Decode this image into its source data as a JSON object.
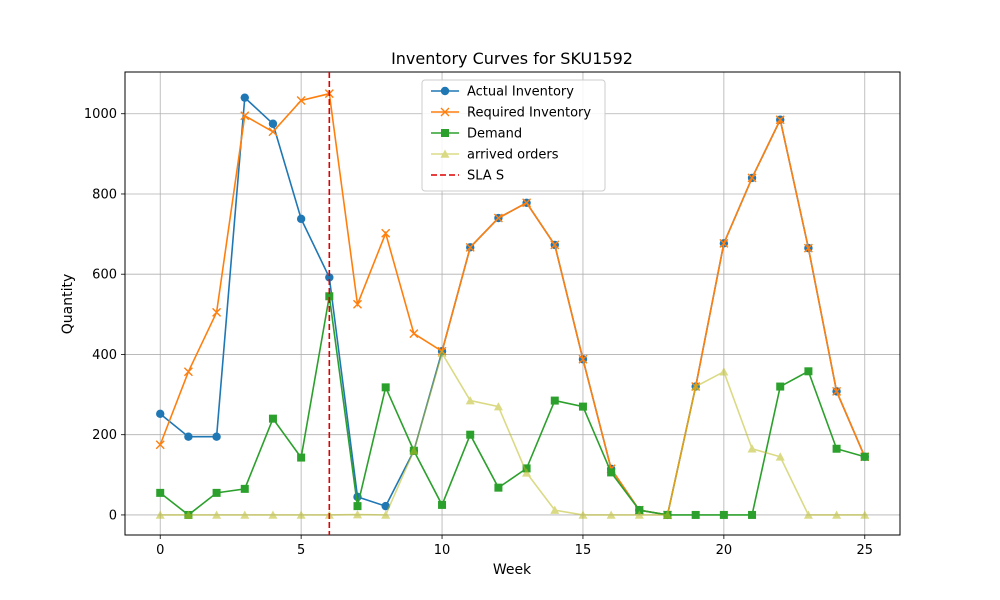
{
  "chart_data": {
    "type": "line",
    "title": "Inventory Curves for SKU1592",
    "xlabel": "Week",
    "ylabel": "Quantity",
    "xlim": [
      -1.25,
      26.25
    ],
    "ylim": [
      -50,
      1104
    ],
    "xticks": [
      0,
      5,
      10,
      15,
      20,
      25
    ],
    "yticks": [
      0,
      200,
      400,
      600,
      800,
      1000
    ],
    "grid": true,
    "legend_position": "top-center",
    "x": [
      0,
      1,
      2,
      3,
      4,
      5,
      6,
      7,
      8,
      9,
      10,
      11,
      12,
      13,
      14,
      15,
      16,
      17,
      18,
      19,
      20,
      21,
      22,
      23,
      24,
      25
    ],
    "series": [
      {
        "name": "Actual Inventory",
        "color": "#1f77b4",
        "marker": "circle",
        "style": "solid",
        "alpha": 1,
        "values": [
          252,
          195,
          195,
          1040,
          975,
          738,
          592,
          45,
          22,
          160,
          408,
          667,
          740,
          778,
          673,
          388,
          115,
          12,
          0,
          320,
          677,
          840,
          985,
          665,
          308,
          145
        ]
      },
      {
        "name": "Required Inventory",
        "color": "#ff7f0e",
        "marker": "x",
        "style": "solid",
        "alpha": 1,
        "values": [
          175,
          357,
          505,
          995,
          955,
          1033,
          1050,
          525,
          702,
          452,
          408,
          667,
          740,
          778,
          673,
          388,
          115,
          12,
          0,
          320,
          677,
          840,
          985,
          665,
          308,
          145
        ]
      },
      {
        "name": "Demand",
        "color": "#2ca02c",
        "marker": "square",
        "style": "solid",
        "alpha": 1,
        "values": [
          55,
          0,
          55,
          65,
          240,
          143,
          545,
          22,
          318,
          160,
          25,
          200,
          68,
          116,
          285,
          270,
          106,
          12,
          0,
          0,
          0,
          0,
          320,
          358,
          165,
          145
        ]
      },
      {
        "name": "arrived orders",
        "color": "#bcbd22",
        "marker": "triangle",
        "style": "solid",
        "alpha": 0.55,
        "values": [
          0,
          0,
          0,
          0,
          0,
          0,
          0,
          1,
          0,
          160,
          403,
          285,
          270,
          105,
          12,
          0,
          0,
          0,
          0,
          320,
          357,
          165,
          145,
          0,
          0,
          0
        ]
      }
    ],
    "vline": {
      "name": "SLA S",
      "x": 6,
      "color": "#e00000",
      "style": "dashed"
    }
  }
}
